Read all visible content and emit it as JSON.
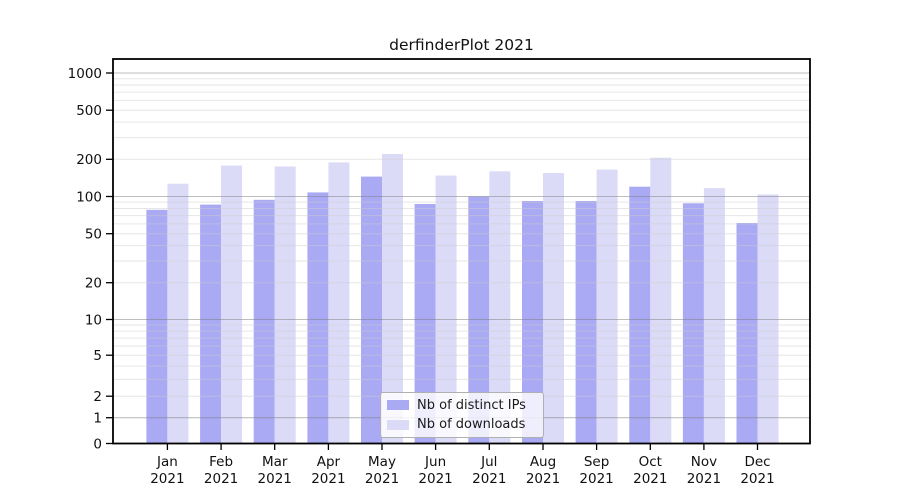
{
  "chart_data": {
    "type": "bar",
    "title": "derfinderPlot 2021",
    "categories": [
      "Jan 2021",
      "Feb 2021",
      "Mar 2021",
      "Apr 2021",
      "May 2021",
      "Jun 2021",
      "Jul 2021",
      "Aug 2021",
      "Sep 2021",
      "Oct 2021",
      "Nov 2021",
      "Dec 2021"
    ],
    "months": [
      "Jan",
      "Feb",
      "Mar",
      "Apr",
      "May",
      "Jun",
      "Jul",
      "Aug",
      "Sep",
      "Oct",
      "Nov",
      "Dec"
    ],
    "year": "2021",
    "series": [
      {
        "name": "Nb of distinct IPs",
        "color": "#a9a9f4",
        "values": [
          78,
          86,
          94,
          108,
          145,
          87,
          100,
          92,
          92,
          120,
          88,
          61
        ]
      },
      {
        "name": "Nb of downloads",
        "color": "#dbdbf8",
        "values": [
          127,
          178,
          175,
          189,
          221,
          148,
          160,
          155,
          165,
          206,
          117,
          104
        ]
      }
    ],
    "y_ticks": [
      0,
      1,
      2,
      5,
      10,
      20,
      50,
      100,
      200,
      500,
      1000
    ],
    "y_scale": "pseudo-log-asinh",
    "ylim": [
      0,
      1300
    ],
    "xlabel": "",
    "ylabel": "",
    "grid": true,
    "legend_position": "inside-bottom-center",
    "colors": {
      "background": "#ffffff",
      "axis": "#000000",
      "tick_text": "#111111",
      "major_grid": "rgba(125,125,125,0.5)",
      "minor_grid": "rgba(205,205,205,0.5)"
    }
  }
}
